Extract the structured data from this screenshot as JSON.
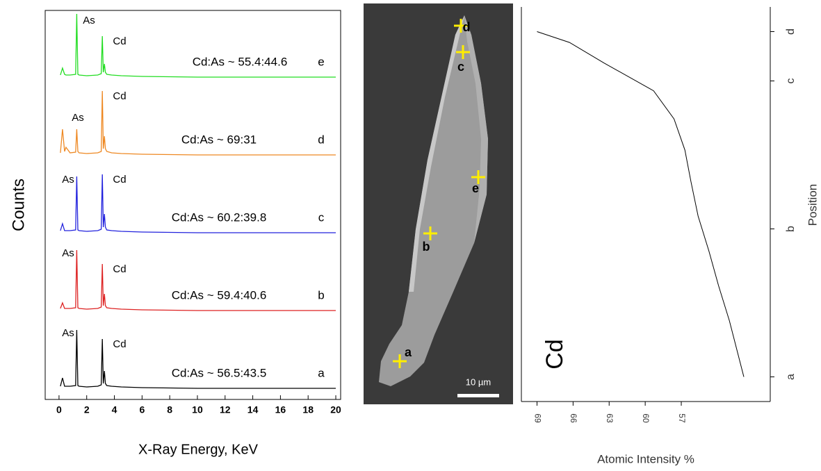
{
  "chart_data": [
    {
      "type": "line",
      "y_label": "Counts",
      "x_label": "X-Ray Energy, KeV",
      "xlim": [
        -1,
        20.35
      ],
      "xticks": [
        0,
        2,
        4,
        6,
        8,
        10,
        12,
        14,
        16,
        18,
        20
      ],
      "ylim": [
        0,
        110
      ],
      "x": [
        0.1,
        0.25,
        0.4,
        0.5,
        0.8,
        1.2,
        1.28,
        1.36,
        1.45,
        2,
        2.8,
        3.05,
        3.13,
        3.2,
        3.28,
        3.35,
        3.45,
        3.8,
        4.5,
        6,
        10,
        20
      ],
      "series": [
        {
          "name": "e",
          "color": "#22dd22",
          "annotation": "Cd:As ~ 55.4:44.6",
          "peaks": [
            "As",
            "Cd"
          ],
          "values": [
            4,
            14,
            5,
            4,
            4,
            5,
            92,
            5,
            4,
            3,
            4,
            6,
            60,
            8,
            20,
            8,
            5,
            4,
            3,
            2,
            1,
            1
          ]
        },
        {
          "name": "d",
          "color": "#ee8822",
          "annotation": "Cd:As ~ 69:31",
          "peaks": [
            "As",
            "Cd"
          ],
          "values": [
            4,
            38,
            6,
            12,
            4,
            5,
            38,
            6,
            4,
            3,
            4,
            6,
            93,
            10,
            28,
            10,
            6,
            4,
            3,
            2,
            1,
            1
          ]
        },
        {
          "name": "c",
          "color": "#2222dd",
          "annotation": "Cd:As ~ 60.2:39.8",
          "peaks": [
            "As",
            "Cd"
          ],
          "values": [
            4,
            14,
            4,
            4,
            4,
            5,
            82,
            5,
            4,
            3,
            4,
            6,
            85,
            9,
            28,
            9,
            5,
            4,
            3,
            2,
            1,
            1
          ]
        },
        {
          "name": "b",
          "color": "#dd2222",
          "annotation": "Cd:As ~ 59.4:40.6",
          "peaks": [
            "As",
            "Cd"
          ],
          "values": [
            4,
            12,
            4,
            4,
            4,
            5,
            88,
            5,
            4,
            3,
            4,
            6,
            68,
            8,
            25,
            8,
            5,
            4,
            3,
            2,
            1,
            1
          ]
        },
        {
          "name": "a",
          "color": "#000000",
          "annotation": "Cd:As ~ 56.5:43.5",
          "peaks": [
            "As",
            "Cd"
          ],
          "values": [
            4,
            16,
            4,
            4,
            4,
            5,
            85,
            5,
            4,
            3,
            4,
            6,
            72,
            8,
            26,
            8,
            5,
            4,
            3,
            2,
            1,
            1
          ]
        }
      ]
    },
    {
      "type": "line",
      "x_label": "Atomic Intensity %",
      "y_label": "Position",
      "annotation": "Cd",
      "color": "#000000",
      "xlim": [
        70.3,
        49.6
      ],
      "xticks": [
        69,
        66,
        63,
        60,
        57
      ],
      "ylim": [
        -0.5,
        7.5
      ],
      "yticks": [
        {
          "value": 0,
          "label": "a"
        },
        {
          "value": 3,
          "label": "b"
        },
        {
          "value": 6,
          "label": "c"
        },
        {
          "value": 7,
          "label": "d"
        }
      ],
      "x": [
        69,
        66.3,
        63.4,
        59.3,
        57.6,
        56.7,
        56.2,
        55.6,
        54.7,
        53.9,
        53.0,
        51.8
      ],
      "values": [
        7.0,
        6.78,
        6.36,
        5.8,
        5.23,
        4.6,
        3.96,
        3.26,
        2.55,
        1.85,
        1.14,
        0
      ]
    }
  ],
  "image": {
    "markers": [
      "a",
      "b",
      "c",
      "d",
      "e"
    ],
    "scale_bar": "10 µm"
  }
}
